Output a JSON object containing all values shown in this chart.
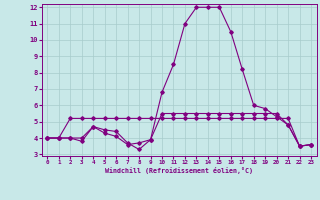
{
  "x": [
    0,
    1,
    2,
    3,
    4,
    5,
    6,
    7,
    8,
    9,
    10,
    11,
    12,
    13,
    14,
    15,
    16,
    17,
    18,
    19,
    20,
    21,
    22,
    23
  ],
  "line1": [
    4.0,
    4.0,
    5.2,
    5.2,
    5.2,
    5.2,
    5.2,
    5.2,
    5.2,
    5.2,
    5.2,
    5.2,
    5.2,
    5.2,
    5.2,
    5.2,
    5.2,
    5.2,
    5.2,
    5.2,
    5.2,
    5.2,
    3.5,
    3.6
  ],
  "line2": [
    4.0,
    4.0,
    4.0,
    4.0,
    4.7,
    4.3,
    4.1,
    3.6,
    3.7,
    3.9,
    5.5,
    5.5,
    5.5,
    5.5,
    5.5,
    5.5,
    5.5,
    5.5,
    5.5,
    5.5,
    5.5,
    4.8,
    3.5,
    3.6
  ],
  "line3": [
    4.0,
    4.0,
    4.0,
    3.8,
    4.7,
    4.5,
    4.4,
    3.7,
    3.3,
    3.9,
    6.8,
    8.5,
    11.0,
    12.0,
    12.0,
    12.0,
    10.5,
    8.2,
    6.0,
    5.8,
    5.3,
    4.8,
    3.5,
    3.6
  ],
  "line_color": "#800080",
  "bg_color": "#c8e8e8",
  "grid_color": "#a8cccc",
  "xlabel": "Windchill (Refroidissement éolien,°C)",
  "ylim": [
    3,
    12
  ],
  "xlim": [
    -0.5,
    23.5
  ],
  "yticks": [
    3,
    4,
    5,
    6,
    7,
    8,
    9,
    10,
    11,
    12
  ],
  "xticks": [
    0,
    1,
    2,
    3,
    4,
    5,
    6,
    7,
    8,
    9,
    10,
    11,
    12,
    13,
    14,
    15,
    16,
    17,
    18,
    19,
    20,
    21,
    22,
    23
  ]
}
